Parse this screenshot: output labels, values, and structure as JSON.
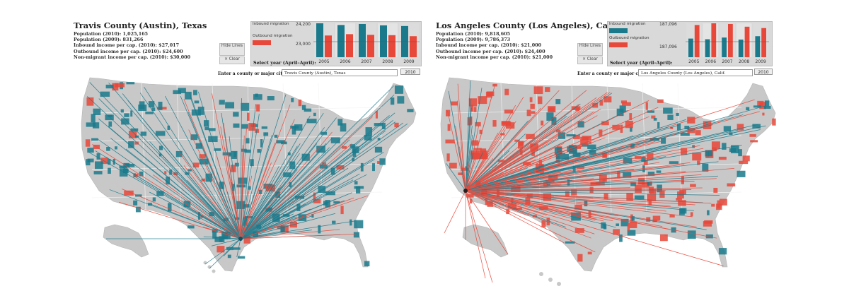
{
  "colors": {
    "inbound": "#1a7a8c",
    "outbound": "#e8483a",
    "land": "#c8c8c8",
    "border": "#f4f4f4"
  },
  "left": {
    "title": "Travis County (Austin), Texas",
    "stats": [
      "Population (2010): 1,025,165",
      "Population (2009): 831,266",
      "Inbound income per cap. (2010): $27,017",
      "Outbound income per cap. (2010): $24,600",
      "Non-migrant income per cap. (2010): $30,000"
    ],
    "buttons": {
      "lines": "Hide Lines",
      "clear": "× Clear"
    },
    "legend": {
      "inbound": "Inbound migration",
      "outbound": "Outbound migration",
      "max": "24,200",
      "mid": "23,000"
    },
    "years": [
      "2005",
      "2006",
      "2007",
      "2008",
      "2009"
    ],
    "select_label": "Select year (April–April):",
    "entry_label": "Enter a county or major city:",
    "entry_value": "Travis County (Austin), Texas",
    "year_value": "2010"
  },
  "right": {
    "title": "Los Angeles County (Los Angeles), Calif.",
    "stats": [
      "Population (2010): 9,818,605",
      "Population (2009): 9,786,373",
      "Inbound income per cap. (2010): $21,000",
      "Outbound income per cap. (2010): $24,400",
      "Non-migrant income per cap. (2010): $21,000"
    ],
    "buttons": {
      "lines": "Hide Lines",
      "clear": "× Clear"
    },
    "legend": {
      "inbound": "Inbound migration",
      "outbound": "Outbound migration",
      "max": "187,096",
      "mid": "187,096"
    },
    "years": [
      "2005",
      "2006",
      "2007",
      "2008",
      "2009"
    ],
    "select_label": "Select year (April–April):",
    "entry_label": "Enter a county or major city:",
    "entry_value": "Los Angeles County (Los Angeles), Calif.",
    "year_value": "2010"
  },
  "chart_data": [
    {
      "type": "bar",
      "categories": [
        "2005",
        "2006",
        "2007",
        "2008",
        "2009"
      ],
      "series": [
        {
          "name": "Inbound migration",
          "values": [
            1.0,
            0.95,
            0.98,
            0.94,
            0.92
          ]
        },
        {
          "name": "Outbound migration",
          "values": [
            0.64,
            0.68,
            0.66,
            0.65,
            0.62
          ]
        }
      ]
    },
    {
      "type": "bar",
      "categories": [
        "2005",
        "2006",
        "2007",
        "2008",
        "2009"
      ],
      "series": [
        {
          "name": "Inbound migration",
          "values": [
            0.55,
            0.53,
            0.58,
            0.52,
            0.62
          ]
        },
        {
          "name": "Outbound migration",
          "values": [
            0.95,
            1.0,
            0.98,
            0.9,
            0.86
          ]
        }
      ]
    }
  ]
}
